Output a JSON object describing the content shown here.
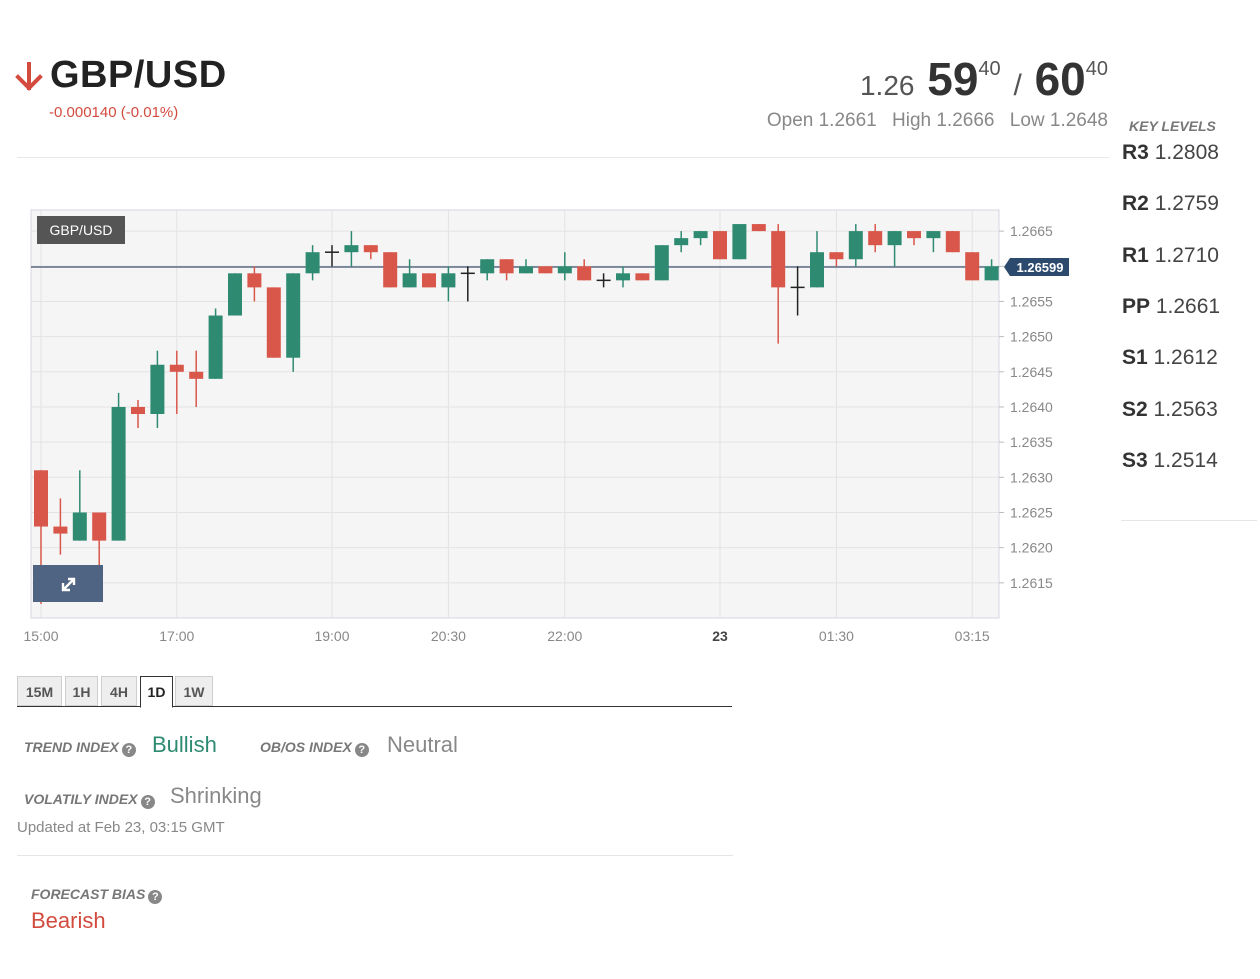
{
  "header": {
    "symbol": "GBP/USD",
    "change": "-0.000140 (-0.01%)",
    "direction": "down",
    "bid_prefix": "1.26",
    "bid_big": "59",
    "bid_small": "40",
    "separator": "/",
    "ask_big": "60",
    "ask_small": "40",
    "open": "Open 1.2661",
    "high": "High 1.2666",
    "low": "Low 1.2648"
  },
  "key_levels": {
    "title": "KEY LEVELS",
    "levels": [
      {
        "name": "R3",
        "value": "1.2808"
      },
      {
        "name": "R2",
        "value": "1.2759"
      },
      {
        "name": "R1",
        "value": "1.2710"
      },
      {
        "name": "PP",
        "value": "1.2661"
      },
      {
        "name": "S1",
        "value": "1.2612"
      },
      {
        "name": "S2",
        "value": "1.2563"
      },
      {
        "name": "S3",
        "value": "1.2514"
      }
    ]
  },
  "timeframes": {
    "items": [
      "15M",
      "1H",
      "4H",
      "1D",
      "1W"
    ],
    "active": "1D"
  },
  "indices": {
    "trend_label": "TREND INDEX",
    "trend_value": "Bullish",
    "obos_label": "OB/OS INDEX",
    "obos_value": "Neutral",
    "volatility_label": "VOLATILY INDEX",
    "volatility_value": "Shrinking",
    "updated": "Updated at Feb 23, 03:15 GMT",
    "forecast_label": "FORECAST BIAS",
    "forecast_value": "Bearish"
  },
  "colors": {
    "up": "#2e8b72",
    "down": "#d9574a",
    "accent_down": "#d24b3e",
    "bullish": "#2e8b72",
    "neutral": "#888888",
    "price_tag": "#2c4a6e"
  },
  "chart_data": {
    "type": "candlestick",
    "label": "GBP/USD",
    "ylim": [
      1.261,
      1.2668
    ],
    "yticks": [
      "1.2615",
      "1.2620",
      "1.2625",
      "1.2630",
      "1.2635",
      "1.2640",
      "1.2645",
      "1.2650",
      "1.2655",
      "1.2660",
      "1.2665"
    ],
    "xticks": [
      {
        "label": "15:00",
        "index": 0
      },
      {
        "label": "17:00",
        "index": 7
      },
      {
        "label": "19:00",
        "index": 15
      },
      {
        "label": "20:30",
        "index": 21
      },
      {
        "label": "22:00",
        "index": 27
      },
      {
        "label": "23",
        "index": 35,
        "bold": true
      },
      {
        "label": "01:30",
        "index": 41
      },
      {
        "label": "03:15",
        "index": 48
      }
    ],
    "current_price": "1.26599",
    "candles": [
      {
        "o": 1.2631,
        "h": 1.2631,
        "l": 1.2612,
        "c": 1.2623
      },
      {
        "o": 1.2623,
        "h": 1.2627,
        "l": 1.2619,
        "c": 1.2622
      },
      {
        "o": 1.2621,
        "h": 1.2631,
        "l": 1.2621,
        "c": 1.2625
      },
      {
        "o": 1.2625,
        "h": 1.2625,
        "l": 1.2617,
        "c": 1.2621
      },
      {
        "o": 1.2621,
        "h": 1.2642,
        "l": 1.2621,
        "c": 1.264
      },
      {
        "o": 1.264,
        "h": 1.2641,
        "l": 1.2637,
        "c": 1.2639
      },
      {
        "o": 1.2639,
        "h": 1.2648,
        "l": 1.2637,
        "c": 1.2646
      },
      {
        "o": 1.2646,
        "h": 1.2648,
        "l": 1.2639,
        "c": 1.2645
      },
      {
        "o": 1.2645,
        "h": 1.2648,
        "l": 1.264,
        "c": 1.2644
      },
      {
        "o": 1.2644,
        "h": 1.2654,
        "l": 1.2644,
        "c": 1.2653
      },
      {
        "o": 1.2653,
        "h": 1.2659,
        "l": 1.2653,
        "c": 1.2659
      },
      {
        "o": 1.2659,
        "h": 1.266,
        "l": 1.2655,
        "c": 1.2657
      },
      {
        "o": 1.2657,
        "h": 1.2657,
        "l": 1.2647,
        "c": 1.2647
      },
      {
        "o": 1.2647,
        "h": 1.2659,
        "l": 1.2645,
        "c": 1.2659
      },
      {
        "o": 1.2659,
        "h": 1.2663,
        "l": 1.2658,
        "c": 1.2662
      },
      {
        "o": 1.2662,
        "h": 1.2663,
        "l": 1.266,
        "c": 1.2662
      },
      {
        "o": 1.2662,
        "h": 1.2665,
        "l": 1.266,
        "c": 1.2663
      },
      {
        "o": 1.2663,
        "h": 1.2663,
        "l": 1.2661,
        "c": 1.2662
      },
      {
        "o": 1.2662,
        "h": 1.2662,
        "l": 1.2657,
        "c": 1.2657
      },
      {
        "o": 1.2657,
        "h": 1.2661,
        "l": 1.2657,
        "c": 1.2659
      },
      {
        "o": 1.2659,
        "h": 1.2659,
        "l": 1.2657,
        "c": 1.2657
      },
      {
        "o": 1.2657,
        "h": 1.266,
        "l": 1.2655,
        "c": 1.2659
      },
      {
        "o": 1.2659,
        "h": 1.266,
        "l": 1.2655,
        "c": 1.2659
      },
      {
        "o": 1.2659,
        "h": 1.2661,
        "l": 1.2658,
        "c": 1.2661
      },
      {
        "o": 1.2661,
        "h": 1.2661,
        "l": 1.2658,
        "c": 1.2659
      },
      {
        "o": 1.2659,
        "h": 1.2661,
        "l": 1.2659,
        "c": 1.266
      },
      {
        "o": 1.266,
        "h": 1.266,
        "l": 1.2659,
        "c": 1.2659
      },
      {
        "o": 1.2659,
        "h": 1.2662,
        "l": 1.2658,
        "c": 1.266
      },
      {
        "o": 1.266,
        "h": 1.2661,
        "l": 1.2658,
        "c": 1.2658
      },
      {
        "o": 1.2658,
        "h": 1.2659,
        "l": 1.2657,
        "c": 1.2658
      },
      {
        "o": 1.2658,
        "h": 1.266,
        "l": 1.2657,
        "c": 1.2659
      },
      {
        "o": 1.2659,
        "h": 1.2659,
        "l": 1.2658,
        "c": 1.2658
      },
      {
        "o": 1.2658,
        "h": 1.2663,
        "l": 1.2658,
        "c": 1.2663
      },
      {
        "o": 1.2663,
        "h": 1.2665,
        "l": 1.2662,
        "c": 1.2664
      },
      {
        "o": 1.2664,
        "h": 1.2665,
        "l": 1.2663,
        "c": 1.2665
      },
      {
        "o": 1.2665,
        "h": 1.2665,
        "l": 1.2661,
        "c": 1.2661
      },
      {
        "o": 1.2661,
        "h": 1.2666,
        "l": 1.2661,
        "c": 1.2666
      },
      {
        "o": 1.2666,
        "h": 1.2666,
        "l": 1.2665,
        "c": 1.2665
      },
      {
        "o": 1.2665,
        "h": 1.2666,
        "l": 1.2649,
        "c": 1.2657
      },
      {
        "o": 1.2657,
        "h": 1.266,
        "l": 1.2653,
        "c": 1.2657
      },
      {
        "o": 1.2657,
        "h": 1.2665,
        "l": 1.2657,
        "c": 1.2662
      },
      {
        "o": 1.2662,
        "h": 1.2662,
        "l": 1.266,
        "c": 1.2661
      },
      {
        "o": 1.2661,
        "h": 1.2666,
        "l": 1.266,
        "c": 1.2665
      },
      {
        "o": 1.2665,
        "h": 1.2666,
        "l": 1.2662,
        "c": 1.2663
      },
      {
        "o": 1.2663,
        "h": 1.2665,
        "l": 1.266,
        "c": 1.2665
      },
      {
        "o": 1.2665,
        "h": 1.2665,
        "l": 1.2663,
        "c": 1.2664
      },
      {
        "o": 1.2664,
        "h": 1.2665,
        "l": 1.2662,
        "c": 1.2665
      },
      {
        "o": 1.2665,
        "h": 1.2665,
        "l": 1.2662,
        "c": 1.2662
      },
      {
        "o": 1.2662,
        "h": 1.2662,
        "l": 1.2658,
        "c": 1.2658
      },
      {
        "o": 1.2658,
        "h": 1.2661,
        "l": 1.2658,
        "c": 1.266
      }
    ]
  }
}
